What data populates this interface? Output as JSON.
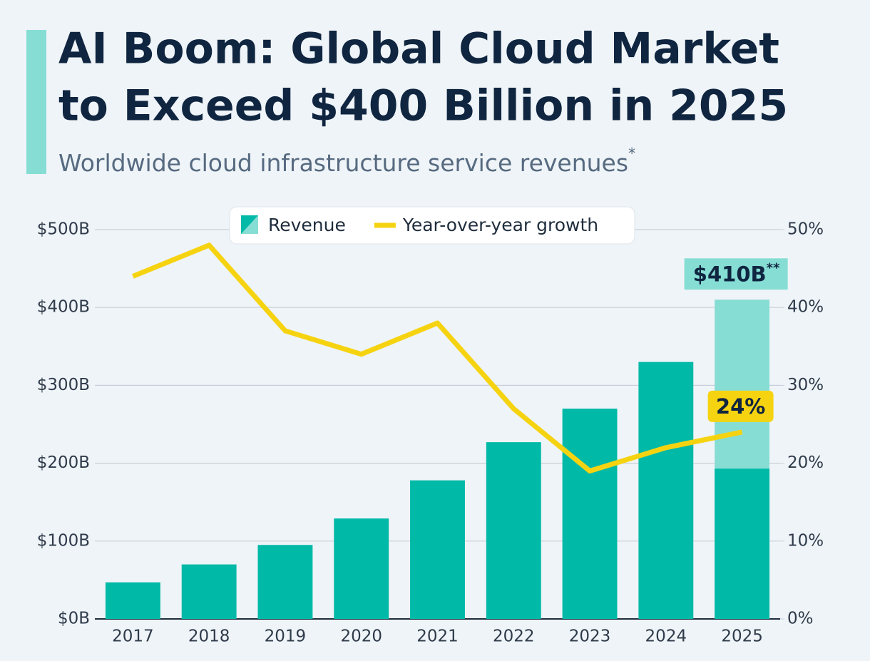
{
  "chart_data": {
    "type": "bar_line",
    "title": [
      "AI Boom: Global Cloud Market",
      "to Exceed $400 Billion in 2025"
    ],
    "subtitle": "Worldwide cloud infrastructure service revenues",
    "subtitle_note": "*",
    "categories": [
      "2017",
      "2018",
      "2019",
      "2020",
      "2021",
      "2022",
      "2023",
      "2024",
      "2025"
    ],
    "series": [
      {
        "name": "Revenue",
        "type": "bar",
        "color": "#00b9a7",
        "light_color": "#86ddd4",
        "values": [
          47,
          70,
          95,
          129,
          178,
          227,
          270,
          330,
          410
        ],
        "partial_values": [
          null,
          null,
          null,
          null,
          null,
          null,
          null,
          null,
          193
        ],
        "value_labels": [
          null,
          null,
          null,
          null,
          null,
          null,
          null,
          null,
          "$410B"
        ],
        "value_label_notes": [
          null,
          null,
          null,
          null,
          null,
          null,
          null,
          null,
          "**"
        ]
      },
      {
        "name": "Year-over-year growth",
        "type": "line",
        "axis": "y2",
        "color": "#f6d311",
        "values": [
          44,
          48,
          37,
          34,
          38,
          27,
          19,
          22,
          24
        ],
        "value_labels": [
          null,
          null,
          null,
          null,
          null,
          null,
          null,
          null,
          "24%"
        ]
      }
    ],
    "ylim": [
      0,
      500
    ],
    "yticks": [
      {
        "value": 0,
        "label": "$0B"
      },
      {
        "value": 100,
        "label": "$100B"
      },
      {
        "value": 200,
        "label": "$200B"
      },
      {
        "value": 300,
        "label": "$300B"
      },
      {
        "value": 400,
        "label": "$400B"
      },
      {
        "value": 500,
        "label": "$500B"
      }
    ],
    "y2lim": [
      0,
      50
    ],
    "y2ticks": [
      {
        "value": 0,
        "label": "0%"
      },
      {
        "value": 10,
        "label": "10%"
      },
      {
        "value": 20,
        "label": "20%"
      },
      {
        "value": 30,
        "label": "30%"
      },
      {
        "value": 40,
        "label": "40%"
      },
      {
        "value": 50,
        "label": "50%"
      }
    ],
    "grid": true
  }
}
